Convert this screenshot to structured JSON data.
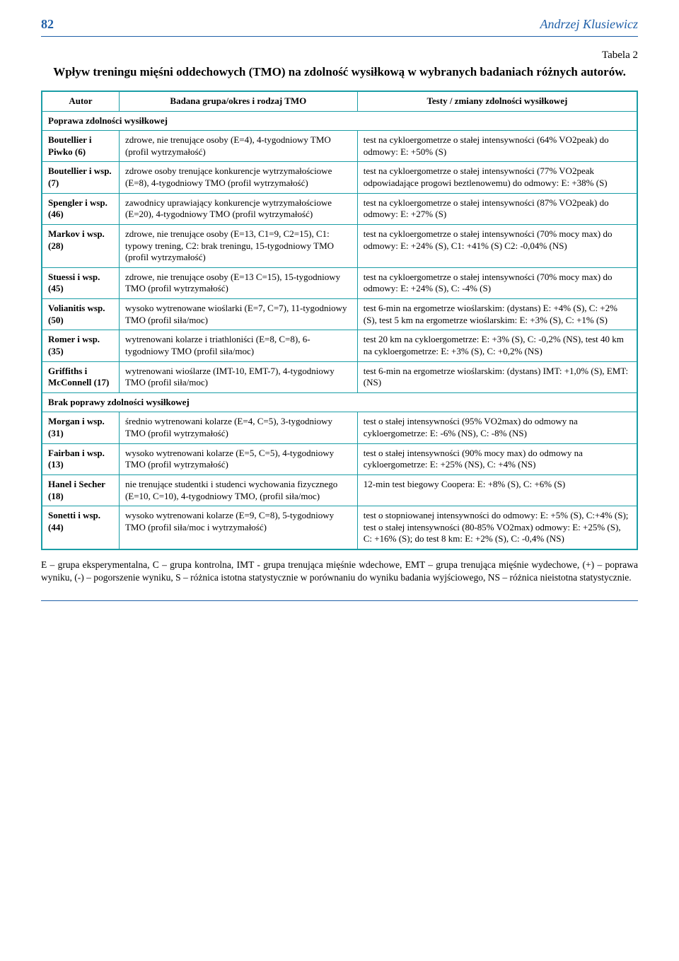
{
  "header": {
    "page_num": "82",
    "author": "Andrzej Klusiewicz"
  },
  "table_label": "Tabela 2",
  "table_title": "Wpływ treningu mięśni oddechowych (TMO) na zdolność wysiłkową w wybranych badaniach różnych autorów.",
  "columns": {
    "c1": "Autor",
    "c2": "Badana grupa/okres i rodzaj TMO",
    "c3": "Testy / zmiany zdolności wysiłkowej"
  },
  "section1": "Poprawa zdolności wysiłkowej",
  "section2": "Brak poprawy zdolności wysiłkowej",
  "rows_improve": [
    {
      "author": "Boutellier i Piwko (6)",
      "group": "zdrowe, nie trenujące osoby (E=4), 4-tygodniowy TMO (profil wytrzymałość)",
      "result": "test na cykloergometrze o stałej intensywności (64% VO2peak) do odmowy: E: +50% (S)"
    },
    {
      "author": "Boutellier i wsp. (7)",
      "group": "zdrowe osoby trenujące konkurencje wytrzymałościowe (E=8), 4-tygodniowy TMO (profil wytrzymałość)",
      "result": "test na cykloergometrze o stałej intensywności (77% VO2peak odpowiadające progowi beztlenowemu) do odmowy: E: +38% (S)"
    },
    {
      "author": "Spengler i wsp. (46)",
      "group": "zawodnicy uprawiający konkurencje wytrzymałościowe (E=20), 4-tygodniowy TMO (profil wytrzymałość)",
      "result": "test na cykloergometrze o stałej intensywności (87% VO2peak) do odmowy: E: +27% (S)"
    },
    {
      "author": "Markov i wsp. (28)",
      "group": "zdrowe, nie trenujące osoby (E=13, C1=9, C2=15), C1: typowy trening, C2: brak treningu, 15-tygodniowy TMO (profil wytrzymałość)",
      "result": "test na cykloergometrze o stałej intensywności (70% mocy max) do odmowy: E: +24% (S), C1: +41% (S) C2: -0,04% (NS)"
    },
    {
      "author": "Stuessi i wsp. (45)",
      "group": "zdrowe, nie trenujące osoby (E=13 C=15), 15-tygodniowy TMO (profil wytrzymałość)",
      "result": "test na cykloergometrze o stałej intensywności (70% mocy max) do odmowy: E: +24% (S), C: -4% (S)"
    },
    {
      "author": "Volianitis wsp. (50)",
      "group": "wysoko wytrenowane wioślarki (E=7, C=7), 11-tygodniowy TMO (profil siła/moc)",
      "result": "test 6-min na ergometrze wioślarskim: (dystans) E: +4% (S), C: +2% (S), test 5 km na ergometrze wioślarskim: E: +3% (S), C: +1% (S)"
    },
    {
      "author": "Romer i wsp. (35)",
      "group": "wytrenowani kolarze i triathloniści (E=8, C=8), 6-tygodniowy TMO (profil siła/moc)",
      "result": "test 20 km na cykloergometrze: E: +3% (S), C: -0,2% (NS), test 40 km na cykloergometrze: E: +3% (S), C: +0,2% (NS)"
    },
    {
      "author": "Griffiths i McConnell (17)",
      "group": "wytrenowani wioślarze (IMT-10, EMT-7), 4-tygodniowy TMO (profil siła/moc)",
      "result": "test 6-min na ergometrze wioślarskim: (dystans) IMT: +1,0% (S), EMT: (NS)"
    }
  ],
  "rows_noimprove": [
    {
      "author": "Morgan i wsp. (31)",
      "group": "średnio wytrenowani kolarze (E=4, C=5), 3-tygodniowy TMO (profil wytrzymałość)",
      "result": "test o stałej intensywności (95% VO2max) do odmowy na cykloergometrze: E: -6% (NS), C: -8% (NS)"
    },
    {
      "author": "Fairban i wsp. (13)",
      "group": "wysoko wytrenowani kolarze (E=5, C=5), 4-tygodniowy TMO (profil wytrzymałość)",
      "result": "test o stałej intensywności (90% mocy max) do odmowy na cykloergometrze: E: +25% (NS), C: +4% (NS)"
    },
    {
      "author": "Hanel i Secher (18)",
      "group": "nie trenujące studentki i studenci wychowania fizycznego (E=10, C=10), 4-tygodniowy TMO, (profil siła/moc)",
      "result": "12-min test biegowy Coopera: E: +8% (S), C: +6% (S)"
    },
    {
      "author": "Sonetti i wsp. (44)",
      "group": "wysoko wytrenowani kolarze (E=9, C=8), 5-tygodniowy TMO (profil siła/moc i wytrzymałość)",
      "result": "test o stopniowanej intensywności do odmowy: E: +5% (S), C:+4% (S); test o stałej intensywności (80-85% VO2max) odmowy: E: +25% (S), C: +16% (S); do test 8 km: E: +2% (S), C: -0,4% (NS)"
    }
  ],
  "footnote": "E – grupa eksperymentalna, C – grupa kontrolna, IMT - grupa trenująca mięśnie wdechowe, EMT – grupa trenująca mięśnie wydechowe, (+) – poprawa wyniku, (-) – pogorszenie wyniku, S – różnica istotna statystycznie w porównaniu do wyniku badania wyjściowego, NS – różnica nieistotna statystycznie."
}
